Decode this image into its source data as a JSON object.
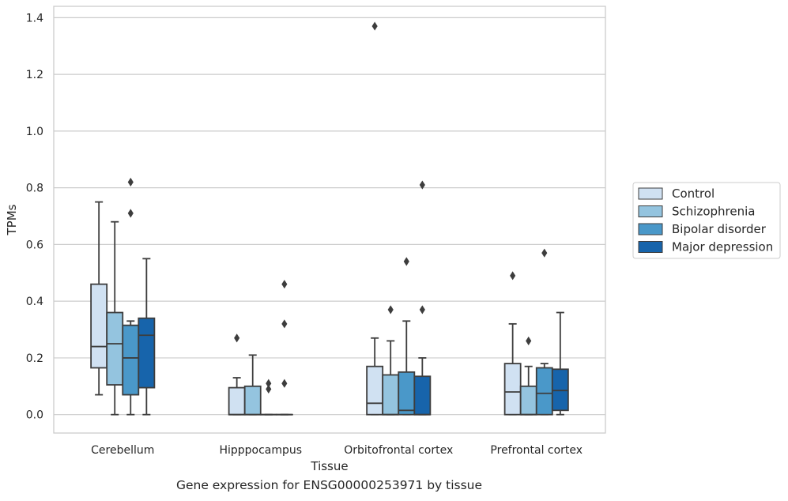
{
  "caption": "Gene expression for ENSG00000253971 by tissue",
  "chart_data": {
    "type": "boxplot",
    "title": "",
    "xlabel": "Tissue",
    "ylabel": "TPMs",
    "ylim": [
      -0.065,
      1.44
    ],
    "yticks": [
      0.0,
      0.2,
      0.4,
      0.6,
      0.8,
      1.0,
      1.2,
      1.4
    ],
    "ytick_labels": [
      "0.0",
      "0.2",
      "0.4",
      "0.6",
      "0.8",
      "1.0",
      "1.2",
      "1.4"
    ],
    "grid": "horizontal",
    "legend_position": "right, outside plot",
    "categories": [
      "Cerebellum",
      "Hipppocampus",
      "Orbitofrontal cortex",
      "Prefrontal cortex"
    ],
    "series": [
      {
        "name": "Control",
        "color": "#d0e1f2",
        "boxes": [
          {
            "whislo": 0.07,
            "q1": 0.165,
            "med": 0.24,
            "q3": 0.46,
            "whishi": 0.75,
            "fliers": []
          },
          {
            "whislo": 0.0,
            "q1": 0.0,
            "med": 0.0,
            "q3": 0.095,
            "whishi": 0.13,
            "fliers": [
              0.27
            ]
          },
          {
            "whislo": 0.0,
            "q1": 0.0,
            "med": 0.04,
            "q3": 0.17,
            "whishi": 0.27,
            "fliers": [
              1.37
            ]
          },
          {
            "whislo": 0.0,
            "q1": 0.0,
            "med": 0.08,
            "q3": 0.18,
            "whishi": 0.32,
            "fliers": [
              0.49
            ]
          }
        ]
      },
      {
        "name": "Schizophrenia",
        "color": "#94c4df",
        "boxes": [
          {
            "whislo": 0.0,
            "q1": 0.105,
            "med": 0.25,
            "q3": 0.36,
            "whishi": 0.68,
            "fliers": []
          },
          {
            "whislo": 0.0,
            "q1": 0.0,
            "med": 0.0,
            "q3": 0.1,
            "whishi": 0.21,
            "fliers": []
          },
          {
            "whislo": 0.0,
            "q1": 0.0,
            "med": 0.0,
            "q3": 0.14,
            "whishi": 0.26,
            "fliers": [
              0.37
            ]
          },
          {
            "whislo": 0.0,
            "q1": 0.0,
            "med": 0.0,
            "q3": 0.1,
            "whishi": 0.17,
            "fliers": [
              0.26
            ]
          }
        ]
      },
      {
        "name": "Bipolar disorder",
        "color": "#4a98c9",
        "boxes": [
          {
            "whislo": 0.0,
            "q1": 0.07,
            "med": 0.2,
            "q3": 0.315,
            "whishi": 0.33,
            "fliers": [
              0.71,
              0.82
            ]
          },
          {
            "whislo": 0.0,
            "q1": 0.0,
            "med": 0.0,
            "q3": 0.0,
            "whishi": 0.0,
            "fliers": [
              0.09,
              0.11
            ]
          },
          {
            "whislo": 0.0,
            "q1": 0.0,
            "med": 0.015,
            "q3": 0.15,
            "whishi": 0.33,
            "fliers": [
              0.54
            ]
          },
          {
            "whislo": 0.0,
            "q1": 0.0,
            "med": 0.075,
            "q3": 0.165,
            "whishi": 0.18,
            "fliers": [
              0.57
            ]
          }
        ]
      },
      {
        "name": "Major depression",
        "color": "#1764ab",
        "boxes": [
          {
            "whislo": 0.0,
            "q1": 0.095,
            "med": 0.28,
            "q3": 0.34,
            "whishi": 0.55,
            "fliers": []
          },
          {
            "whislo": 0.0,
            "q1": 0.0,
            "med": 0.0,
            "q3": 0.0,
            "whishi": 0.0,
            "fliers": [
              0.11,
              0.32,
              0.46
            ]
          },
          {
            "whislo": 0.0,
            "q1": 0.0,
            "med": 0.0,
            "q3": 0.135,
            "whishi": 0.2,
            "fliers": [
              0.37,
              0.81
            ]
          },
          {
            "whislo": 0.0,
            "q1": 0.015,
            "med": 0.085,
            "q3": 0.16,
            "whishi": 0.36,
            "fliers": []
          }
        ]
      }
    ],
    "line_color": "#3d3d3d",
    "grid_color": "#cccccc",
    "frame_color": "#cccccc"
  }
}
